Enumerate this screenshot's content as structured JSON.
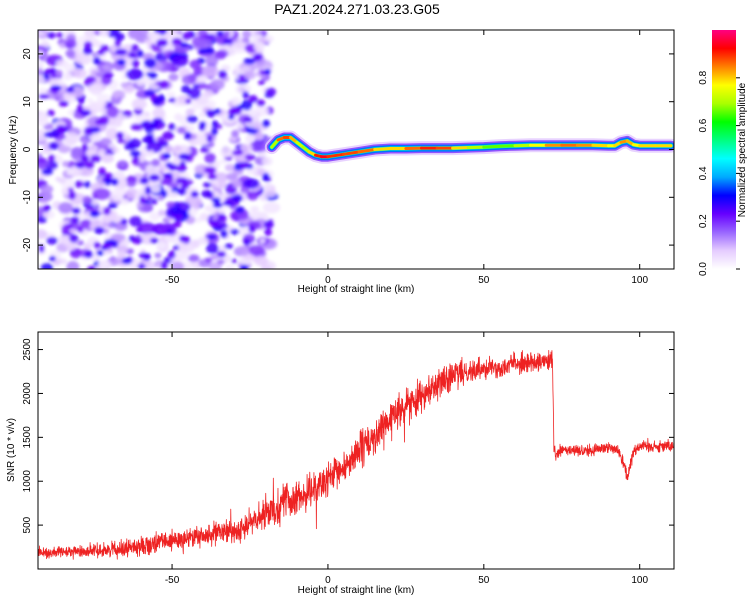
{
  "figure_title": "PAZ1.2024.271.03.23.G05",
  "chart_data": [
    {
      "type": "heatmap",
      "xlabel": "Height of straight line (km)",
      "ylabel": "Frequency (Hz)",
      "xlim": [
        -93,
        111
      ],
      "ylim": [
        -25,
        25
      ],
      "x_ticks": [
        -50,
        0,
        50,
        100
      ],
      "y_ticks": [
        -20,
        -10,
        0,
        10,
        20
      ],
      "grid": false,
      "noise_region": {
        "x_range": [
          -93,
          -18
        ],
        "y_range": [
          -25,
          25
        ]
      },
      "ridge": {
        "x": [
          -18,
          -16,
          -14,
          -12,
          -10,
          -8,
          -6,
          -4,
          -2,
          0,
          5,
          10,
          15,
          20,
          25,
          30,
          35,
          40,
          45,
          50,
          55,
          60,
          65,
          70,
          75,
          80,
          85,
          90,
          92,
          94,
          96,
          98,
          100,
          105,
          110
        ],
        "frequency": [
          0.5,
          2.0,
          2.5,
          2.5,
          1.5,
          0.5,
          -0.5,
          -1.2,
          -1.5,
          -1.5,
          -1.0,
          -0.5,
          0.0,
          0.2,
          0.2,
          0.3,
          0.3,
          0.3,
          0.4,
          0.5,
          0.7,
          0.8,
          0.9,
          0.9,
          0.9,
          0.9,
          0.9,
          0.8,
          0.8,
          1.5,
          1.8,
          1.0,
          0.8,
          0.8,
          0.8
        ],
        "amplitude": [
          0.6,
          0.85,
          0.95,
          0.9,
          0.8,
          0.7,
          0.75,
          0.9,
          1.0,
          0.98,
          0.9,
          0.95,
          0.85,
          0.8,
          0.85,
          0.95,
          0.95,
          0.9,
          0.75,
          0.7,
          0.65,
          0.7,
          0.75,
          0.85,
          0.9,
          0.9,
          0.85,
          0.8,
          0.8,
          0.85,
          0.9,
          0.8,
          0.8,
          0.85,
          0.8
        ]
      },
      "colorbar": {
        "label": "Normalized spectral amplitude",
        "range": [
          0,
          1
        ],
        "ticks": [
          "0.0",
          "0.2",
          "0.4",
          "0.6",
          "0.8"
        ],
        "colors": [
          "#ffffff",
          "#e5ccff",
          "#9966ff",
          "#6600ff",
          "#0000ff",
          "#00aaff",
          "#00ffff",
          "#00ff80",
          "#00ff00",
          "#aaff00",
          "#ffff00",
          "#ff8000",
          "#ff0000",
          "#ff0080"
        ]
      }
    },
    {
      "type": "line",
      "xlabel": "Height of straight line (km)",
      "ylabel": "SNR (10 * v/v)",
      "xlim": [
        -93,
        111
      ],
      "ylim": [
        0,
        2700
      ],
      "x_ticks": [
        -50,
        0,
        50,
        100
      ],
      "y_ticks": [
        500,
        1000,
        1500,
        2000,
        2500
      ],
      "grid": false,
      "color": "#ee2222",
      "series": [
        {
          "x": [
            -93,
            -85,
            -80,
            -75,
            -70,
            -65,
            -60,
            -55,
            -50,
            -45,
            -40,
            -35,
            -30,
            -25,
            -20,
            -15,
            -13,
            -12,
            -10,
            -5,
            0,
            5,
            10,
            15,
            20,
            25,
            30,
            35,
            40,
            45,
            50,
            55,
            60,
            65,
            70,
            72,
            72.5,
            73,
            75,
            80,
            85,
            90,
            93,
            95,
            96,
            98,
            100,
            105,
            111
          ],
          "y": [
            180,
            190,
            200,
            210,
            220,
            240,
            260,
            290,
            320,
            350,
            380,
            400,
            430,
            520,
            620,
            750,
            850,
            700,
            800,
            900,
            1000,
            1150,
            1350,
            1500,
            1700,
            1850,
            2000,
            2100,
            2200,
            2250,
            2300,
            2300,
            2350,
            2350,
            2350,
            2400,
            1350,
            1300,
            1350,
            1350,
            1350,
            1400,
            1350,
            1200,
            1050,
            1350,
            1400,
            1400,
            1400
          ],
          "noise_amplitude": [
            80,
            90,
            100,
            110,
            120,
            140,
            150,
            160,
            170,
            180,
            180,
            190,
            200,
            220,
            250,
            280,
            300,
            260,
            260,
            270,
            280,
            290,
            300,
            300,
            300,
            290,
            280,
            250,
            230,
            200,
            180,
            170,
            170,
            170,
            170,
            170,
            110,
            100,
            100,
            100,
            100,
            100,
            110,
            130,
            150,
            110,
            100,
            100,
            100
          ]
        }
      ]
    }
  ]
}
